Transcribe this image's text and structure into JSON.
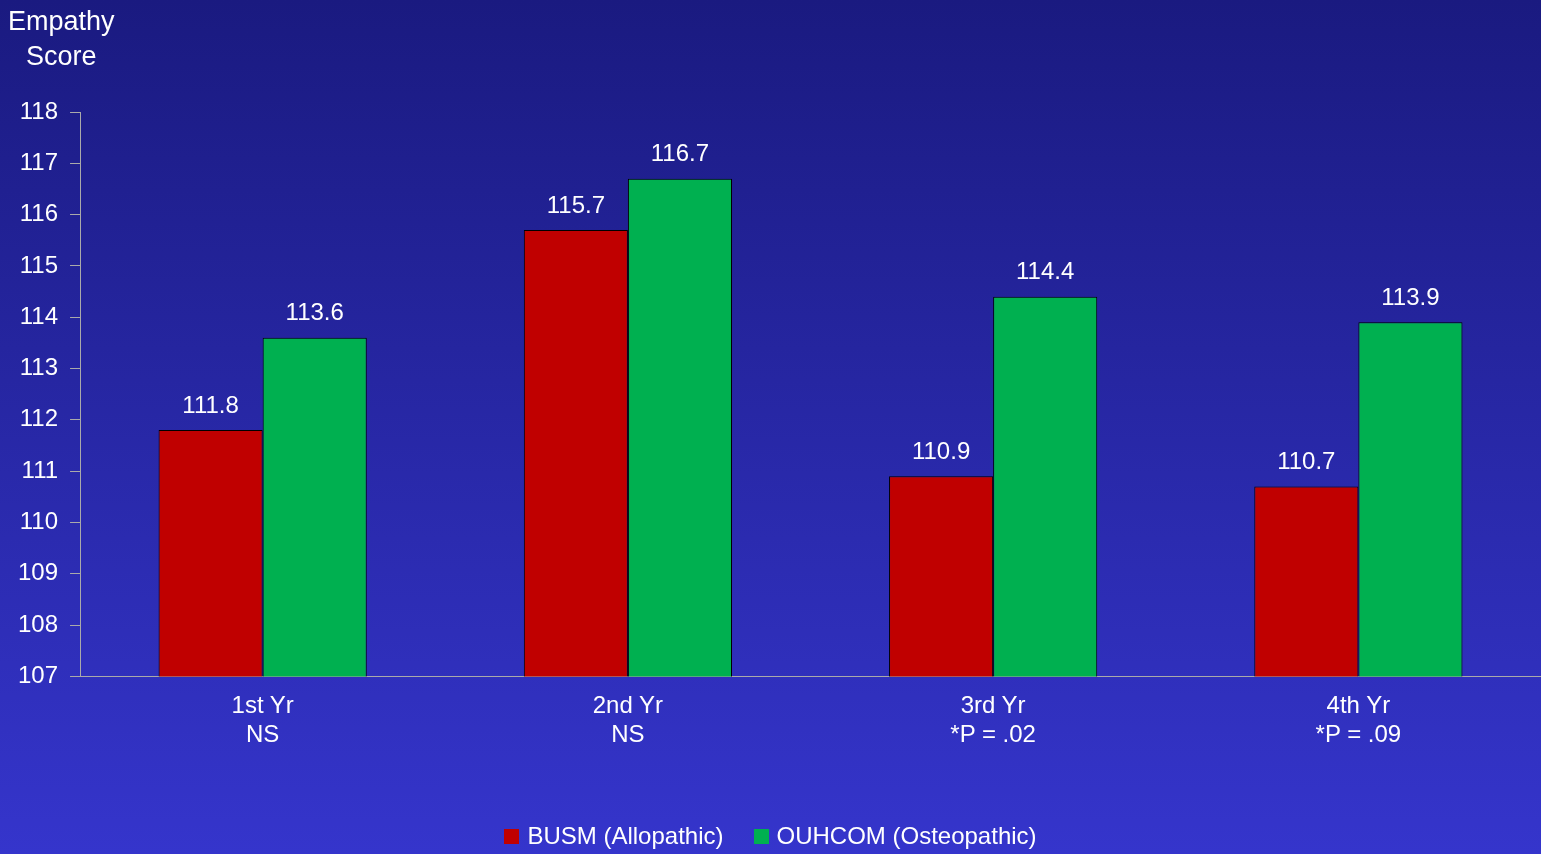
{
  "chart_data": {
    "type": "bar",
    "ylabel": "Empathy\nScore",
    "categories": [
      "1st Yr\nNS",
      "2nd Yr\nNS",
      "3rd Yr\n*P = .02",
      "4th Yr\n*P = .09"
    ],
    "series": [
      {
        "name": "BUSM (Allopathic)",
        "color": "#c00000",
        "values": [
          111.8,
          115.7,
          110.9,
          110.7
        ]
      },
      {
        "name": "OUHCOM (Osteopathic)",
        "color": "#00b050",
        "values": [
          113.6,
          116.7,
          114.4,
          113.9
        ]
      }
    ],
    "ylim": [
      107,
      118
    ],
    "yticks": [
      107,
      108,
      109,
      110,
      111,
      112,
      113,
      114,
      115,
      116,
      117,
      118
    ],
    "data_labels": true,
    "legend": "bottom",
    "grid": false
  }
}
